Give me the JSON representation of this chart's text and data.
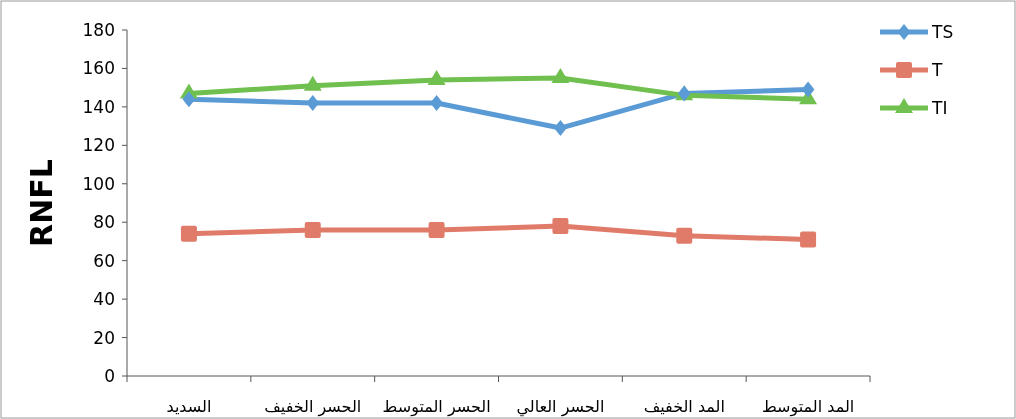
{
  "chart_data": {
    "type": "line",
    "ylabel": "RNFL",
    "categories": [
      "السديد",
      "الحسر الخفيف",
      "الحسر المتوسط",
      "الحسر العالي",
      "المد الخفيف",
      "المد المتوسط"
    ],
    "series": [
      {
        "name": "TS",
        "color": "#5b9bd5",
        "marker": "diamond",
        "values": [
          144,
          142,
          142,
          129,
          147,
          149
        ]
      },
      {
        "name": "T",
        "color": "#e07b6a",
        "marker": "square",
        "values": [
          74,
          76,
          76,
          78,
          73,
          71
        ]
      },
      {
        "name": "TI",
        "color": "#70c050",
        "marker": "triangle",
        "values": [
          147,
          151,
          154,
          155,
          146,
          144
        ]
      }
    ],
    "ylim": [
      0,
      180
    ],
    "yticks": [
      0,
      20,
      40,
      60,
      80,
      100,
      120,
      140,
      160,
      180
    ],
    "legend": "top right",
    "grid": false,
    "line_style": "solid"
  }
}
